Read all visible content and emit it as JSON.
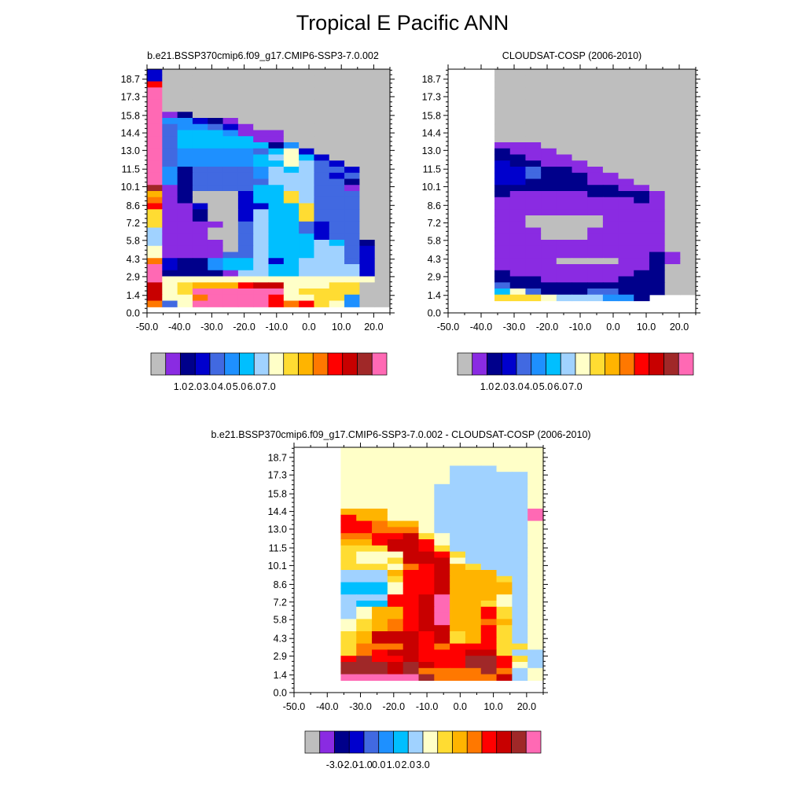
{
  "main_title": "Tropical E Pacific ANN",
  "palette": [
    "#bebebe",
    "#8a2be2",
    "#00008b",
    "#0000cd",
    "#4169e1",
    "#1e90ff",
    "#00bfff",
    "#a0d2ff",
    "#ffffc8",
    "#ffdc32",
    "#ffb400",
    "#ff7800",
    "#ff0000",
    "#c80000",
    "#a02828",
    "#ff69b4"
  ],
  "y_tick_labels": [
    "0.0",
    "1.4",
    "2.9",
    "4.3",
    "5.8",
    "7.2",
    "8.6",
    "10.1",
    "11.5",
    "13.0",
    "14.4",
    "15.8",
    "17.3",
    "18.7"
  ],
  "x_tick_labels": [
    "-50.0",
    "-40.0",
    "-30.0",
    "-20.0",
    "-10.0",
    "0.0",
    "10.0",
    "20.0"
  ],
  "colorbar_labels_abs": [
    "1.0",
    "2.0",
    "3.0",
    "4.0",
    "5.0",
    "6.0",
    "7.0"
  ],
  "colorbar_labels_diff": [
    "-3.0",
    "-2.0",
    "-1.0",
    "0.0",
    "1.0",
    "2.0",
    "3.0"
  ],
  "chart_data": [
    {
      "type": "heatmap",
      "title": "b.e21.BSSP370cmip6.f09_g17.CMIP6-SSP3-7.0.002",
      "note": "grid rows listed top (18.7) to bottom (0.0); values are palette indices, -1 = no data",
      "x_range": [
        -50,
        25
      ],
      "y_range": [
        0,
        19.5
      ],
      "x_ticks": [
        -50,
        -40,
        -30,
        -20,
        -10,
        0,
        10,
        20
      ],
      "y_ticks": [
        0.0,
        1.4,
        2.9,
        4.3,
        5.8,
        7.2,
        8.6,
        10.1,
        11.5,
        13.0,
        14.4,
        15.8,
        17.3,
        18.7
      ],
      "grid": [
        "3000000000000000",
        "3000000000000000",
        "C000000000000000",
        "F000000000000000",
        "F000000000000000",
        "F000000000000000",
        "F000000000000000",
        "F120000000000000",
        "F553210000000000",
        "F455431000000000",
        "F466651110000000",
        "F466666110000000",
        "F466666625000000",
        "F455555468300000",
        "F455555678630000",
        "F455555668743000",
        "F524444576744300",
        "F524444577743400",
        "F524444477744200",
        "E124444667744100",
        "A120003669744400",
        "B120003669744400",
        "C113003366944400",
        "9112003766944400",
        "9112003766944400",
        "9111104766434400",
        "7111004766434400",
        "7111004766634400",
        "7111104766676420",
        "8111104766677430",
        "8111144766677430",
        "B322566736777430",
        "F322566766777730",
        "F222217766777730",
        "F888888888888880",
        "D89AAACDD8889900",
        "D89FFFFFF8999900",
        "D88BFFFFC8899500",
        "B48FFFFFCBC98500",
        "ZZZZZZZZZZZZZZZZ"
      ]
    },
    {
      "type": "heatmap",
      "title": "CLOUDSAT-COSP (2006-2010)",
      "note": "grid rows listed top to bottom; values are palette indices, -1 = no data",
      "x_range": [
        -50,
        25
      ],
      "y_range": [
        0,
        19.5
      ],
      "x_ticks": [
        -50,
        -40,
        -30,
        -20,
        -10,
        0,
        10,
        20
      ],
      "y_ticks": [
        0.0,
        1.4,
        2.9,
        4.3,
        5.8,
        7.2,
        8.6,
        10.1,
        11.5,
        13.0,
        14.4,
        15.8,
        17.3,
        18.7
      ],
      "grid": [
        "ZZZ0000000000000",
        "ZZZ0000000000000",
        "ZZZ0000000000000",
        "ZZZ0000000000000",
        "ZZZ0000000000000",
        "ZZZ0000000000000",
        "ZZZ0000000000000",
        "ZZZ0000000000000",
        "ZZZ0000000000000",
        "ZZZ0000000000000",
        "ZZZ0000000000000",
        "ZZZ0000000000000",
        "ZZZ1110000000000",
        "ZZZ2111000000000",
        "ZZZ2211100000000",
        "ZZZ3221110000000",
        "ZZZ3342211000000",
        "ZZZ3342221100000",
        "ZZZ3322221110000",
        "ZZZ2222222211000",
        "ZZZ2111112222100",
        "ZZZ1111111112100",
        "ZZZ1111111111100",
        "ZZZ1111111111100",
        "ZZZ1100000111100",
        "ZZZ1100000111100",
        "ZZZ1110001111100",
        "ZZZ1110001111100",
        "ZZZ1111111111100",
        "ZZZ1111111111100",
        "ZZZ1111111111210",
        "ZZZ1111000011210",
        "ZZZ1111111111200",
        "ZZZ2111111112200",
        "ZZZ2221111122200",
        "ZZZ4222222222200",
        "ZZZ6842224422200",
        "ZZZ9998777552ZZZ",
        "ZZZZZZZZZZZZZZZZ",
        "ZZZZZZZZZZZZZZZZ"
      ]
    },
    {
      "type": "heatmap",
      "title": "b.e21.BSSP370cmip6.f09_g17.CMIP6-SSP3-7.0.002 - CLOUDSAT-COSP (2006-2010)",
      "note": "grid rows listed top to bottom; values are palette indices, -1 = no data",
      "x_range": [
        -50,
        25
      ],
      "y_range": [
        0,
        19.5
      ],
      "x_ticks": [
        -50,
        -40,
        -30,
        -20,
        -10,
        0,
        10,
        20
      ],
      "y_ticks": [
        0.0,
        1.4,
        2.9,
        4.3,
        5.8,
        7.2,
        8.6,
        10.1,
        11.5,
        13.0,
        14.4,
        15.8,
        17.3,
        18.7
      ],
      "grid": [
        "ZZZ8888888888888",
        "ZZZ8888888888888",
        "ZZZ8888888888888",
        "ZZZ8888888777888",
        "ZZZ8888888777778",
        "ZZZ8888888777778",
        "ZZZ8888887777778",
        "ZZZ8888887777778",
        "ZZZ8888887777778",
        "ZZZ8888887777778",
        "ZZZAAA888777777F",
        "ZZZCAA888777777F",
        "ZZZCCBAA87777778",
        "ZZZCCBBB87777778",
        "ZZZBBCCD98777778",
        "ZZZAACDDC8777778",
        "ZZZ999DDC9777778",
        "ZZZ9888DDC977778",
        "ZZZ9889DDD877778",
        "ZZZ9998BCDA97778",
        "ZZZ777ACCDAAA778",
        "ZZZ7779CCDAAA978",
        "ZZZ6668CCDAAAA78",
        "ZZZ6668CCDAAAA78",
        "ZZZ777CCDFAAA878",
        "ZZZ766CCDFAA9878",
        "ZZZ78AACDFAAC978",
        "ZZZ78AACDFAAC978",
        "ZZZ89ABCDFAABA78",
        "ZZZ89ABCDDAAC978",
        "ZZZ9ADDDCD9AC978",
        "ZZZ9ADDDCD9AC978",
        "ZZZ9BBBDCBCCC998",
        "ZZZ9BCDDCCCDD977",
        "ZZZCECCDCCCEEC97",
        "ZZZEEEDEDCCEEC87",
        "ZZZEEEDEBBBBEB78",
        "ZZZFFFFFEBBBBD78",
        "ZZZZZZZZZZZZZZZZ",
        "ZZZZZZZZZZZZZZZZ"
      ]
    }
  ]
}
